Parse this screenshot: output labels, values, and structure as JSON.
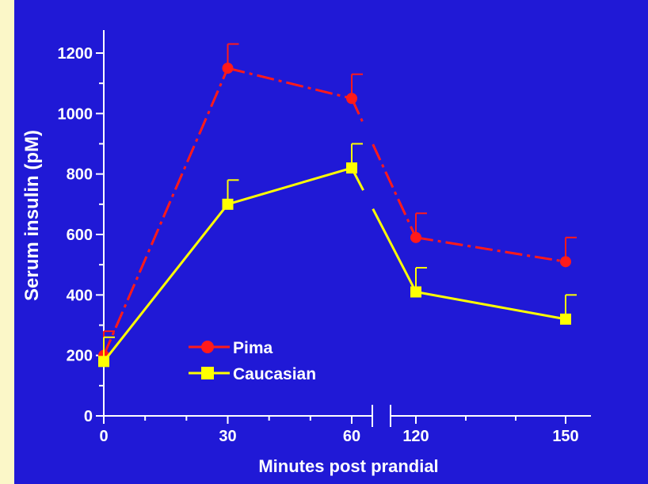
{
  "chart_data": {
    "type": "line",
    "xlabel": "Minutes post prandial",
    "ylabel": "Serum insulin (pM)",
    "ylim": [
      0,
      1200
    ],
    "yticks": [
      0,
      200,
      400,
      600,
      800,
      1000,
      1200
    ],
    "xticks": [
      0,
      30,
      60,
      120,
      150
    ],
    "x_axis_break": "between 60 and 120",
    "grid": false,
    "legend_position": "lower-left",
    "series": [
      {
        "name": "Pima",
        "x": [
          0,
          30,
          60,
          120,
          150
        ],
        "values": [
          200,
          1150,
          1050,
          590,
          510
        ],
        "error_upper": [
          80,
          80,
          80,
          80,
          80
        ],
        "color": "#ff1a1a",
        "line_style": "dash-dot",
        "marker": "circle"
      },
      {
        "name": "Caucasian",
        "x": [
          0,
          30,
          60,
          120,
          150
        ],
        "values": [
          180,
          700,
          820,
          410,
          320
        ],
        "error_upper": [
          80,
          80,
          80,
          80,
          80
        ],
        "color": "#ffff00",
        "line_style": "solid",
        "marker": "square"
      }
    ]
  },
  "colors": {
    "background": "#2019d6",
    "frame": "#fbf7c8",
    "axis": "#ffffff"
  }
}
